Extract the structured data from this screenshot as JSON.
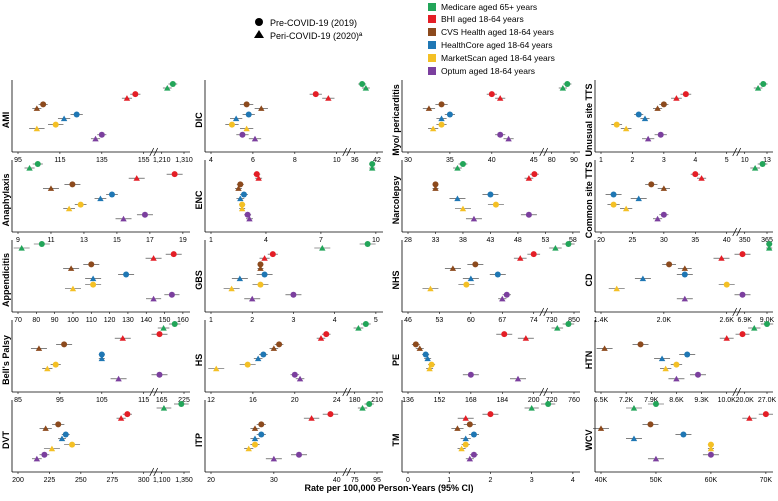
{
  "legend": {
    "shapes": [
      {
        "label": "Pre-COVID-19 (2019)",
        "shape": "circle"
      },
      {
        "label": "Peri-COVID-19 (2020)ª",
        "shape": "triangle"
      }
    ],
    "databases": [
      {
        "label": "Medicare aged 65+ years",
        "color": "#22a559"
      },
      {
        "label": "BHI aged 18-64 years",
        "color": "#e41e26"
      },
      {
        "label": "CVS Health aged 18-64 years",
        "color": "#8c4a1d"
      },
      {
        "label": "HealthCore aged 18-64 years",
        "color": "#1f77b4"
      },
      {
        "label": "MarketScan aged 18-64 years",
        "color": "#f4c025"
      },
      {
        "label": "Optum aged 18-64 years",
        "color": "#7b3f9e"
      }
    ]
  },
  "xaxis_title": "Rate per 100,000 Person-Years (95% CI)",
  "chart_data": [
    {
      "type": "forest",
      "title": "AMI",
      "ticks": [
        "95",
        "115",
        "135",
        "155",
        "1,210",
        "1,310"
      ],
      "series": [
        {
          "name": "Medicare",
          "pre": 1260,
          "peri": 1235
        },
        {
          "name": "BHI",
          "pre": 151,
          "peri": 147
        },
        {
          "name": "CVS Health",
          "pre": 107,
          "peri": 104
        },
        {
          "name": "HealthCore",
          "pre": 123,
          "peri": 117
        },
        {
          "name": "MarketScan",
          "pre": 113,
          "peri": 104
        },
        {
          "name": "Optum",
          "pre": 135,
          "peri": 132
        }
      ]
    },
    {
      "type": "forest",
      "title": "Anaphylaxis",
      "ticks": [
        "9",
        "11",
        "13",
        "15",
        "17",
        "19"
      ],
      "series": [
        {
          "name": "Medicare",
          "pre": 10.2,
          "peri": 9.7
        },
        {
          "name": "BHI",
          "pre": 18.5,
          "peri": 16.2
        },
        {
          "name": "CVS Health",
          "pre": 12.3,
          "peri": 11.0
        },
        {
          "name": "HealthCore",
          "pre": 14.7,
          "peri": 14.0
        },
        {
          "name": "MarketScan",
          "pre": 12.8,
          "peri": 12.1
        },
        {
          "name": "Optum",
          "pre": 16.7,
          "peri": 15.4
        }
      ]
    },
    {
      "type": "forest",
      "title": "Appendicitis",
      "ticks": [
        "70",
        "80",
        "90",
        "100",
        "110",
        "120",
        "130",
        "140",
        "150",
        "160"
      ],
      "series": [
        {
          "name": "Medicare",
          "pre": 83,
          "peri": 72
        },
        {
          "name": "BHI",
          "pre": 155,
          "peri": 144
        },
        {
          "name": "CVS Health",
          "pre": 110,
          "peri": 99
        },
        {
          "name": "HealthCore",
          "pre": 129,
          "peri": 111
        },
        {
          "name": "MarketScan",
          "pre": 111,
          "peri": 100
        },
        {
          "name": "Optum",
          "pre": 154,
          "peri": 144
        }
      ]
    },
    {
      "type": "forest",
      "title": "Bell's Palsy",
      "ticks": [
        "85",
        "95",
        "105",
        "115",
        "165",
        "225"
      ],
      "series": [
        {
          "name": "Medicare",
          "pre": 200,
          "peri": 170
        },
        {
          "name": "BHI",
          "pre": 117,
          "peri": 110
        },
        {
          "name": "CVS Health",
          "pre": 96,
          "peri": 90
        },
        {
          "name": "HealthCore",
          "pre": 105,
          "peri": 105
        },
        {
          "name": "MarketScan",
          "pre": 94,
          "peri": 92
        },
        {
          "name": "Optum",
          "pre": 123,
          "peri": 109
        }
      ]
    },
    {
      "type": "forest",
      "title": "DVT",
      "ticks": [
        "200",
        "225",
        "250",
        "275",
        "300",
        "1,100",
        "1,350"
      ],
      "series": [
        {
          "name": "Medicare",
          "pre": 1320,
          "peri": 1125
        },
        {
          "name": "BHI",
          "pre": 287,
          "peri": 282
        },
        {
          "name": "CVS Health",
          "pre": 232,
          "peri": 222
        },
        {
          "name": "HealthCore",
          "pre": 238,
          "peri": 235
        },
        {
          "name": "MarketScan",
          "pre": 243,
          "peri": 227
        },
        {
          "name": "Optum",
          "pre": 221,
          "peri": 215
        }
      ]
    },
    {
      "type": "forest",
      "title": "DIC",
      "ticks": [
        "4",
        "6",
        "8",
        "10",
        "36",
        "42"
      ],
      "series": [
        {
          "name": "Medicare",
          "pre": 38,
          "peri": 39
        },
        {
          "name": "BHI",
          "pre": 9.0,
          "peri": 9.6
        },
        {
          "name": "CVS Health",
          "pre": 5.7,
          "peri": 6.4
        },
        {
          "name": "HealthCore",
          "pre": 5.8,
          "peri": 5.2
        },
        {
          "name": "MarketScan",
          "pre": 5.0,
          "peri": 5.7
        },
        {
          "name": "Optum",
          "pre": 5.5,
          "peri": 6.1
        }
      ]
    },
    {
      "type": "forest",
      "title": "ENC",
      "ticks": [
        "1",
        "4",
        "7",
        "10"
      ],
      "series": [
        {
          "name": "Medicare",
          "pre": 9.8,
          "peri": 9.8
        },
        {
          "name": "BHI",
          "pre": 3.5,
          "peri": 3.6
        },
        {
          "name": "CVS Health",
          "pre": 2.6,
          "peri": 2.5
        },
        {
          "name": "HealthCore",
          "pre": 2.8,
          "peri": 2.6
        },
        {
          "name": "MarketScan",
          "pre": 2.7,
          "peri": 2.7
        },
        {
          "name": "Optum",
          "pre": 3.0,
          "peri": 3.1
        }
      ]
    },
    {
      "type": "forest",
      "title": "GBS",
      "ticks": [
        "1",
        "2",
        "3",
        "4",
        "5"
      ],
      "series": [
        {
          "name": "Medicare",
          "pre": 4.8,
          "peri": 3.7
        },
        {
          "name": "BHI",
          "pre": 2.5,
          "peri": 2.3
        },
        {
          "name": "CVS Health",
          "pre": 2.2,
          "peri": 2.2
        },
        {
          "name": "HealthCore",
          "pre": 2.3,
          "peri": 1.7
        },
        {
          "name": "MarketScan",
          "pre": 2.2,
          "peri": 1.5
        },
        {
          "name": "Optum",
          "pre": 3.0,
          "peri": 2.0
        }
      ]
    },
    {
      "type": "forest",
      "title": "HS",
      "ticks": [
        "12",
        "16",
        "20",
        "24",
        "180",
        "210"
      ],
      "series": [
        {
          "name": "Medicare",
          "pre": 195,
          "peri": 185
        },
        {
          "name": "BHI",
          "pre": 23,
          "peri": 22.5
        },
        {
          "name": "CVS Health",
          "pre": 18.5,
          "peri": 18.0
        },
        {
          "name": "HealthCore",
          "pre": 17.0,
          "peri": 16.5
        },
        {
          "name": "MarketScan",
          "pre": 15.5,
          "peri": 12.5
        },
        {
          "name": "Optum",
          "pre": 20.0,
          "peri": 20.5
        }
      ]
    },
    {
      "type": "forest",
      "title": "ITP",
      "ticks": [
        "20",
        "30",
        "40",
        "75",
        "95"
      ],
      "series": [
        {
          "name": "Medicare",
          "pre": 88,
          "peri": 82
        },
        {
          "name": "BHI",
          "pre": 39,
          "peri": 36
        },
        {
          "name": "CVS Health",
          "pre": 28,
          "peri": 27
        },
        {
          "name": "HealthCore",
          "pre": 28,
          "peri": 27
        },
        {
          "name": "MarketScan",
          "pre": 27,
          "peri": 26
        },
        {
          "name": "Optum",
          "pre": 34,
          "peri": 30
        }
      ]
    },
    {
      "type": "forest",
      "title": "Myo/ pericarditis",
      "ticks": [
        "30",
        "35",
        "40",
        "45",
        "80",
        "90"
      ],
      "series": [
        {
          "name": "Medicare",
          "pre": 87,
          "peri": 85
        },
        {
          "name": "BHI",
          "pre": 40,
          "peri": 41
        },
        {
          "name": "CVS Health",
          "pre": 34,
          "peri": 32.5
        },
        {
          "name": "HealthCore",
          "pre": 35,
          "peri": 34
        },
        {
          "name": "MarketScan",
          "pre": 34,
          "peri": 33
        },
        {
          "name": "Optum",
          "pre": 41,
          "peri": 42
        }
      ]
    },
    {
      "type": "forest",
      "title": "Narcolepsy",
      "ticks": [
        "28",
        "33",
        "38",
        "43",
        "48",
        "53",
        "58"
      ],
      "series": [
        {
          "name": "Medicare",
          "pre": 38,
          "peri": 37
        },
        {
          "name": "BHI",
          "pre": 51,
          "peri": 50
        },
        {
          "name": "CVS Health",
          "pre": 33,
          "peri": 33
        },
        {
          "name": "HealthCore",
          "pre": 43,
          "peri": 37
        },
        {
          "name": "MarketScan",
          "pre": 44,
          "peri": 38
        },
        {
          "name": "Optum",
          "pre": 50,
          "peri": 40
        }
      ]
    },
    {
      "type": "forest",
      "title": "NHS",
      "ticks": [
        "46",
        "53",
        "60",
        "67",
        "74",
        "730",
        "850"
      ],
      "series": [
        {
          "name": "Medicare",
          "pre": 820,
          "peri": 750
        },
        {
          "name": "BHI",
          "pre": 74,
          "peri": 71
        },
        {
          "name": "CVS Health",
          "pre": 61,
          "peri": 56
        },
        {
          "name": "HealthCore",
          "pre": 66,
          "peri": 60
        },
        {
          "name": "MarketScan",
          "pre": 59,
          "peri": 51
        },
        {
          "name": "Optum",
          "pre": 68,
          "peri": 67
        }
      ]
    },
    {
      "type": "forest",
      "title": "PE",
      "ticks": [
        "136",
        "152",
        "168",
        "184",
        "200",
        "720",
        "760"
      ],
      "series": [
        {
          "name": "Medicare",
          "pre": 750,
          "peri": 730
        },
        {
          "name": "BHI",
          "pre": 185,
          "peri": 196
        },
        {
          "name": "CVS Health",
          "pre": 140,
          "peri": 142
        },
        {
          "name": "HealthCore",
          "pre": 145,
          "peri": 146
        },
        {
          "name": "MarketScan",
          "pre": 148,
          "peri": 147
        },
        {
          "name": "Optum",
          "pre": 168,
          "peri": 192
        }
      ]
    },
    {
      "type": "forest",
      "title": "TM",
      "ticks": [
        "0",
        "1",
        "2",
        "3",
        "4"
      ],
      "series": [
        {
          "name": "Medicare",
          "pre": 3.4,
          "peri": 3.0
        },
        {
          "name": "BHI",
          "pre": 2.0,
          "peri": 1.4
        },
        {
          "name": "CVS Health",
          "pre": 1.5,
          "peri": 1.2
        },
        {
          "name": "HealthCore",
          "pre": 1.6,
          "peri": 1.4
        },
        {
          "name": "MarketScan",
          "pre": 1.4,
          "peri": 1.3
        },
        {
          "name": "Optum",
          "pre": 1.6,
          "peri": 1.5
        }
      ]
    },
    {
      "type": "forest",
      "title": "Unusual site TTS",
      "ticks": [
        "1",
        "2",
        "3",
        "4",
        "5",
        "10",
        "13"
      ],
      "series": [
        {
          "name": "Medicare",
          "pre": 12.5,
          "peri": 11.8
        },
        {
          "name": "BHI",
          "pre": 3.7,
          "peri": 3.4
        },
        {
          "name": "CVS Health",
          "pre": 3.0,
          "peri": 2.8
        },
        {
          "name": "HealthCore",
          "pre": 2.2,
          "peri": 2.4
        },
        {
          "name": "MarketScan",
          "pre": 1.5,
          "peri": 1.8
        },
        {
          "name": "Optum",
          "pre": 2.9,
          "peri": 2.5
        }
      ]
    },
    {
      "type": "forest",
      "title": "Common site TTS",
      "ticks": [
        "20",
        "25",
        "30",
        "35",
        "40",
        "350",
        "365"
      ],
      "series": [
        {
          "name": "Medicare",
          "pre": 362,
          "peri": 357
        },
        {
          "name": "BHI",
          "pre": 35,
          "peri": 36
        },
        {
          "name": "CVS Health",
          "pre": 28,
          "peri": 30
        },
        {
          "name": "HealthCore",
          "pre": 22,
          "peri": 26
        },
        {
          "name": "MarketScan",
          "pre": 22,
          "peri": 24
        },
        {
          "name": "Optum",
          "pre": 30,
          "peri": 29
        }
      ]
    },
    {
      "type": "forest",
      "title": "CD",
      "ticks": [
        "1.4K",
        "2.0K",
        "2.6K",
        "6.9K",
        "9.0K"
      ],
      "series": [
        {
          "name": "Medicare",
          "pre": 8800,
          "peri": 7400
        },
        {
          "name": "BHI",
          "pre": 2.95,
          "peri": 2.55
        },
        {
          "name": "CVS Health",
          "pre": 2.05,
          "peri": 2.2
        },
        {
          "name": "HealthCore",
          "pre": 2.2,
          "peri": 1.8
        },
        {
          "name": "MarketScan",
          "pre": 2.6,
          "peri": 1.55
        },
        {
          "name": "Optum",
          "pre": 2.7,
          "peri": 2.2
        }
      ]
    },
    {
      "type": "forest",
      "title": "HTN",
      "ticks": [
        "6.5K",
        "7.2K",
        "7.9K",
        "8.6K",
        "9.3K",
        "10.0K",
        "20.0K",
        "27.0K"
      ],
      "series": [
        {
          "name": "Medicare",
          "pre": 27,
          "peri": 23
        },
        {
          "name": "BHI",
          "pre": 10.2,
          "peri": 10.0
        },
        {
          "name": "CVS Health",
          "pre": 7.6,
          "peri": 6.6
        },
        {
          "name": "HealthCore",
          "pre": 8.9,
          "peri": 8.2
        },
        {
          "name": "MarketScan",
          "pre": 8.6,
          "peri": 8.3
        },
        {
          "name": "Optum",
          "pre": 9.2,
          "peri": 8.6
        }
      ]
    },
    {
      "type": "forest",
      "title": "WCV",
      "ticks": [
        "40K",
        "50K",
        "60K",
        "70K"
      ],
      "series": [
        {
          "name": "Medicare",
          "pre": 50,
          "peri": 46
        },
        {
          "name": "BHI",
          "pre": 70,
          "peri": 67
        },
        {
          "name": "CVS Health",
          "pre": 49,
          "peri": 40
        },
        {
          "name": "HealthCore",
          "pre": 55,
          "peri": 46
        },
        {
          "name": "MarketScan",
          "pre": 60,
          "peri": 60
        },
        {
          "name": "Optum",
          "pre": 60,
          "peri": 50
        }
      ]
    }
  ]
}
